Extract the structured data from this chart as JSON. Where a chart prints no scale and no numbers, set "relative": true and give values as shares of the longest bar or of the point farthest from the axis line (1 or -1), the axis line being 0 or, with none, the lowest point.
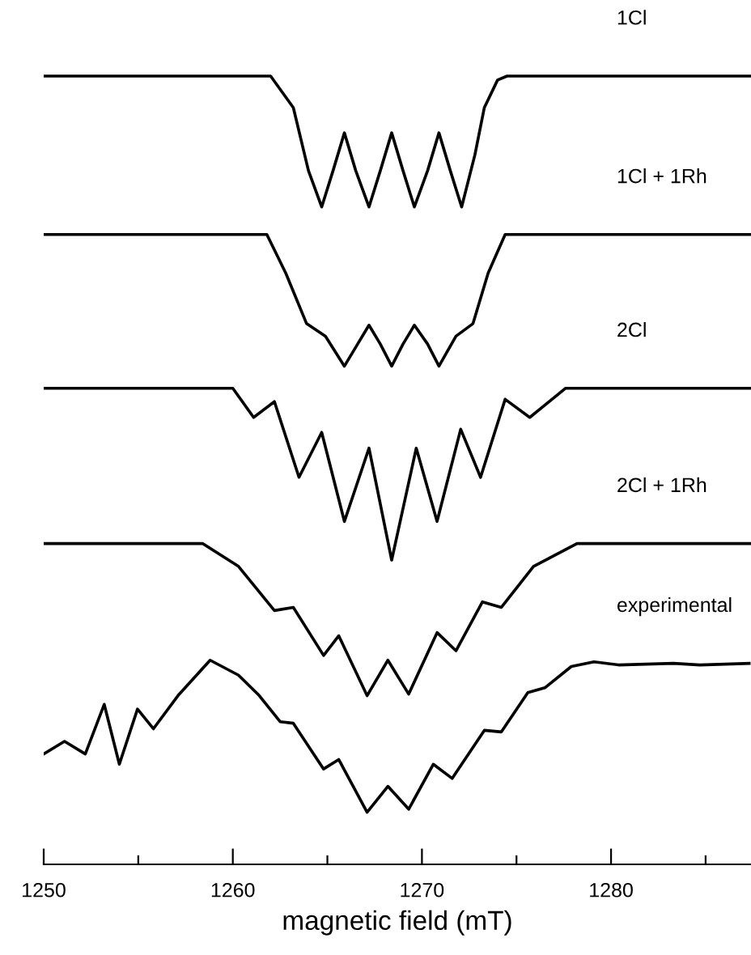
{
  "chart_data": {
    "type": "line",
    "relative": true,
    "xlabel": "magnetic field (mT)",
    "xlim": [
      1250,
      1287.4
    ],
    "xticks": [
      1250,
      {
        "value": 1255,
        "label": null
      },
      1260,
      {
        "value": 1265,
        "label": null
      },
      1270,
      {
        "value": 1275,
        "label": null
      },
      1280,
      {
        "value": 1285,
        "label": null
      }
    ],
    "grid": false,
    "legend": false,
    "marker": "none",
    "line_style": "solid",
    "series": [
      {
        "name": "1Cl",
        "color": "#000000",
        "x": [
          1250,
          1262.0,
          1263.2,
          1264.0,
          1264.7,
          1265.3,
          1265.9,
          1266.5,
          1267.2,
          1267.8,
          1268.4,
          1269.0,
          1269.6,
          1270.3,
          1270.9,
          1271.5,
          1272.1,
          1272.8,
          1273.3,
          1274.0,
          1274.5,
          1287.4
        ],
        "values": [
          1.0,
          1.0,
          0.96,
          0.88,
          0.834,
          0.88,
          0.928,
          0.88,
          0.834,
          0.88,
          0.928,
          0.88,
          0.834,
          0.88,
          0.928,
          0.88,
          0.834,
          0.9,
          0.96,
          0.995,
          1.0,
          1.0
        ]
      },
      {
        "name": "1Cl + 1Rh",
        "color": "#000000",
        "x": [
          1250,
          1261.8,
          1262.8,
          1263.9,
          1264.9,
          1265.9,
          1266.6,
          1267.2,
          1267.8,
          1268.4,
          1269.0,
          1269.6,
          1270.3,
          1270.9,
          1271.8,
          1272.7,
          1273.5,
          1274.4,
          1287.4
        ],
        "values": [
          0.799,
          0.799,
          0.75,
          0.686,
          0.67,
          0.632,
          0.66,
          0.684,
          0.66,
          0.632,
          0.66,
          0.684,
          0.66,
          0.632,
          0.67,
          0.686,
          0.75,
          0.799,
          0.799
        ]
      },
      {
        "name": "2Cl",
        "color": "#000000",
        "x": [
          1250,
          1260.0,
          1261.1,
          1262.2,
          1263.5,
          1264.7,
          1265.9,
          1267.2,
          1268.4,
          1269.7,
          1270.8,
          1272.05,
          1273.1,
          1274.4,
          1275.7,
          1277.6,
          1287.4
        ],
        "values": [
          0.604,
          0.604,
          0.567,
          0.587,
          0.491,
          0.548,
          0.435,
          0.528,
          0.386,
          0.528,
          0.435,
          0.552,
          0.491,
          0.59,
          0.567,
          0.604,
          0.604
        ]
      },
      {
        "name": "2Cl + 1Rh",
        "color": "#000000",
        "x": [
          1250,
          1258.4,
          1260.3,
          1262.2,
          1263.2,
          1264.8,
          1265.6,
          1267.1,
          1268.2,
          1269.3,
          1270.8,
          1271.8,
          1273.2,
          1274.2,
          1275.9,
          1278.2,
          1287.4
        ],
        "values": [
          0.407,
          0.407,
          0.378,
          0.322,
          0.326,
          0.265,
          0.29,
          0.214,
          0.259,
          0.216,
          0.294,
          0.271,
          0.333,
          0.326,
          0.378,
          0.407,
          0.407
        ]
      },
      {
        "name": "experimental",
        "color": "#000000",
        "x": [
          1250.0,
          1251.1,
          1252.2,
          1253.2,
          1254.0,
          1254.96,
          1255.8,
          1257.1,
          1258.8,
          1260.3,
          1261.4,
          1262.5,
          1263.2,
          1264.8,
          1265.6,
          1267.1,
          1268.2,
          1269.3,
          1270.6,
          1271.6,
          1273.3,
          1274.2,
          1275.6,
          1276.5,
          1277.9,
          1279.1,
          1280.4,
          1283.3,
          1284.7,
          1287.3
        ],
        "values": [
          0.14,
          0.156,
          0.14,
          0.203,
          0.127,
          0.197,
          0.172,
          0.214,
          0.259,
          0.24,
          0.214,
          0.181,
          0.179,
          0.121,
          0.133,
          0.066,
          0.099,
          0.07,
          0.127,
          0.109,
          0.17,
          0.168,
          0.218,
          0.224,
          0.251,
          0.257,
          0.253,
          0.255,
          0.253,
          0.255
        ]
      }
    ]
  }
}
